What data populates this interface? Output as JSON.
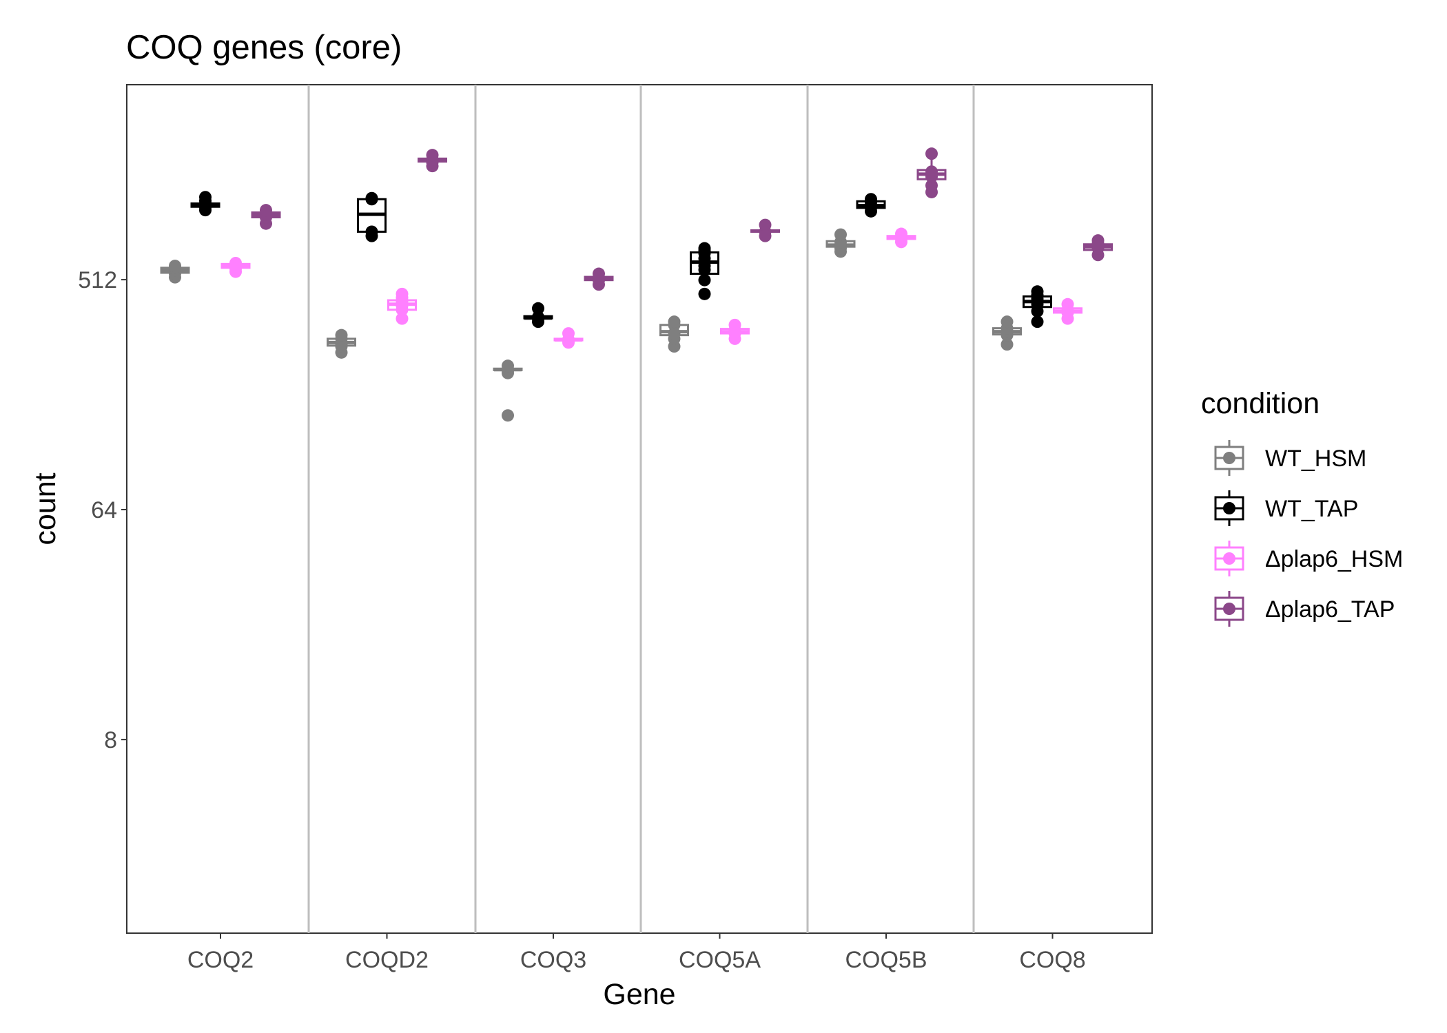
{
  "chart_data": {
    "type": "box",
    "title": "COQ genes (core)",
    "xlabel": "Gene",
    "ylabel": "count",
    "y_scale": "log2",
    "yticks": [
      8,
      64,
      512
    ],
    "ylim": [
      3.2,
      1350
    ],
    "categories": [
      "COQ2",
      "COQD2",
      "COQ3",
      "COQ5A",
      "COQ5B",
      "COQ8"
    ],
    "legend": {
      "title": "condition",
      "position": "right",
      "entries": [
        "WT_HSM",
        "WT_TAP",
        "Δplap6_HSM",
        "Δplap6_TAP"
      ]
    },
    "series": [
      {
        "name": "WT_HSM",
        "color": "#7f7f7f",
        "groups": [
          {
            "category": "COQ2",
            "points": [
              523,
              540,
              556,
              563,
              572,
              580
            ],
            "box": [
              530,
              545,
              557,
              570,
              575
            ]
          },
          {
            "category": "COQD2",
            "points": [
              265,
              280,
              285,
              300,
              310
            ],
            "box": [
              268,
              282,
              290,
              300,
              310
            ]
          },
          {
            "category": "COQ3",
            "points": [
              150,
              220,
              225,
              228,
              235
            ],
            "box": [
              222,
              226,
              227,
              229,
              235
            ]
          },
          {
            "category": "COQ5A",
            "points": [
              280,
              300,
              315,
              340,
              350
            ],
            "box": [
              290,
              310,
              320,
              340,
              350
            ]
          },
          {
            "category": "COQ5B",
            "points": [
              660,
              680,
              700,
              720,
              770
            ],
            "box": [
              670,
              690,
              700,
              725,
              770
            ]
          },
          {
            "category": "COQ8",
            "points": [
              285,
              310,
              320,
              330,
              350
            ],
            "box": [
              300,
              312,
              320,
              330,
              350
            ]
          }
        ]
      },
      {
        "name": "WT_TAP",
        "color": "#000000",
        "groups": [
          {
            "category": "COQ2",
            "points": [
              960,
              985,
              1000,
              1020,
              1045,
              1080
            ],
            "box": [
              975,
              990,
              1000,
              1020,
              1080
            ]
          },
          {
            "category": "COQD2",
            "points": [
              760,
              790,
              1060,
              1070
            ],
            "box": [
              790,
              790,
              925,
              1060,
              1070
            ]
          },
          {
            "category": "COQ3",
            "points": [
              350,
              360,
              365,
              395
            ],
            "box": [
              358,
              361,
              362,
              368,
              395
            ]
          },
          {
            "category": "COQ5A",
            "points": [
              450,
              510,
              560,
              580,
              620,
              650,
              665,
              680
            ],
            "box": [
              510,
              540,
              600,
              655,
              680
            ]
          },
          {
            "category": "COQ5B",
            "points": [
              950,
              980,
              1000,
              1030,
              1060
            ],
            "box": [
              960,
              980,
              1000,
              1040,
              1060
            ]
          },
          {
            "category": "COQ8",
            "points": [
              350,
              385,
              410,
              430,
              445,
              460
            ],
            "box": [
              390,
              400,
              420,
              440,
              460
            ]
          }
        ]
      },
      {
        "name": "Δplap6_HSM",
        "color": "#ff80ff",
        "groups": [
          {
            "category": "COQ2",
            "points": [
              550,
              565,
              575,
              585,
              595
            ],
            "box": [
              560,
              570,
              580,
              590,
              595
            ]
          },
          {
            "category": "COQD2",
            "points": [
              360,
              390,
              405,
              420,
              435,
              450
            ],
            "box": [
              375,
              390,
              410,
              425,
              450
            ]
          },
          {
            "category": "COQ3",
            "points": [
              290,
              295,
              298,
              315
            ],
            "box": [
              293,
              296,
              297,
              300,
              315
            ]
          },
          {
            "category": "COQ5A",
            "points": [
              300,
              315,
              325,
              340
            ],
            "box": [
              305,
              315,
              320,
              328,
              340
            ]
          },
          {
            "category": "COQ5B",
            "points": [
              720,
              740,
              755,
              775
            ],
            "box": [
              720,
              740,
              748,
              760,
              775
            ]
          },
          {
            "category": "COQ8",
            "points": [
              360,
              380,
              390,
              410
            ],
            "box": [
              370,
              380,
              385,
              395,
              410
            ]
          }
        ]
      },
      {
        "name": "Δplap6_TAP",
        "color": "#8b4789",
        "groups": [
          {
            "category": "COQ2",
            "points": [
              850,
              900,
              920,
              960
            ],
            "box": [
              870,
              900,
              920,
              940,
              960
            ]
          },
          {
            "category": "COQD2",
            "points": [
              1430,
              1480,
              1520,
              1580
            ],
            "box": [
              1460,
              1490,
              1510,
              1530,
              1580
            ]
          },
          {
            "category": "COQ3",
            "points": [
              490,
              510,
              520,
              540
            ],
            "box": [
              500,
              510,
              515,
              525,
              540
            ]
          },
          {
            "category": "COQ5A",
            "points": [
              760,
              790,
              840
            ],
            "box": [
              780,
              790,
              795,
              800,
              840
            ]
          },
          {
            "category": "COQ5B",
            "points": [
              1130,
              1200,
              1300,
              1360,
              1600
            ],
            "box": [
              1200,
              1270,
              1330,
              1380,
              1600
            ]
          },
          {
            "category": "COQ8",
            "points": [
              640,
              680,
              710,
              730
            ],
            "box": [
              660,
              670,
              690,
              705,
              730
            ]
          }
        ]
      }
    ]
  }
}
